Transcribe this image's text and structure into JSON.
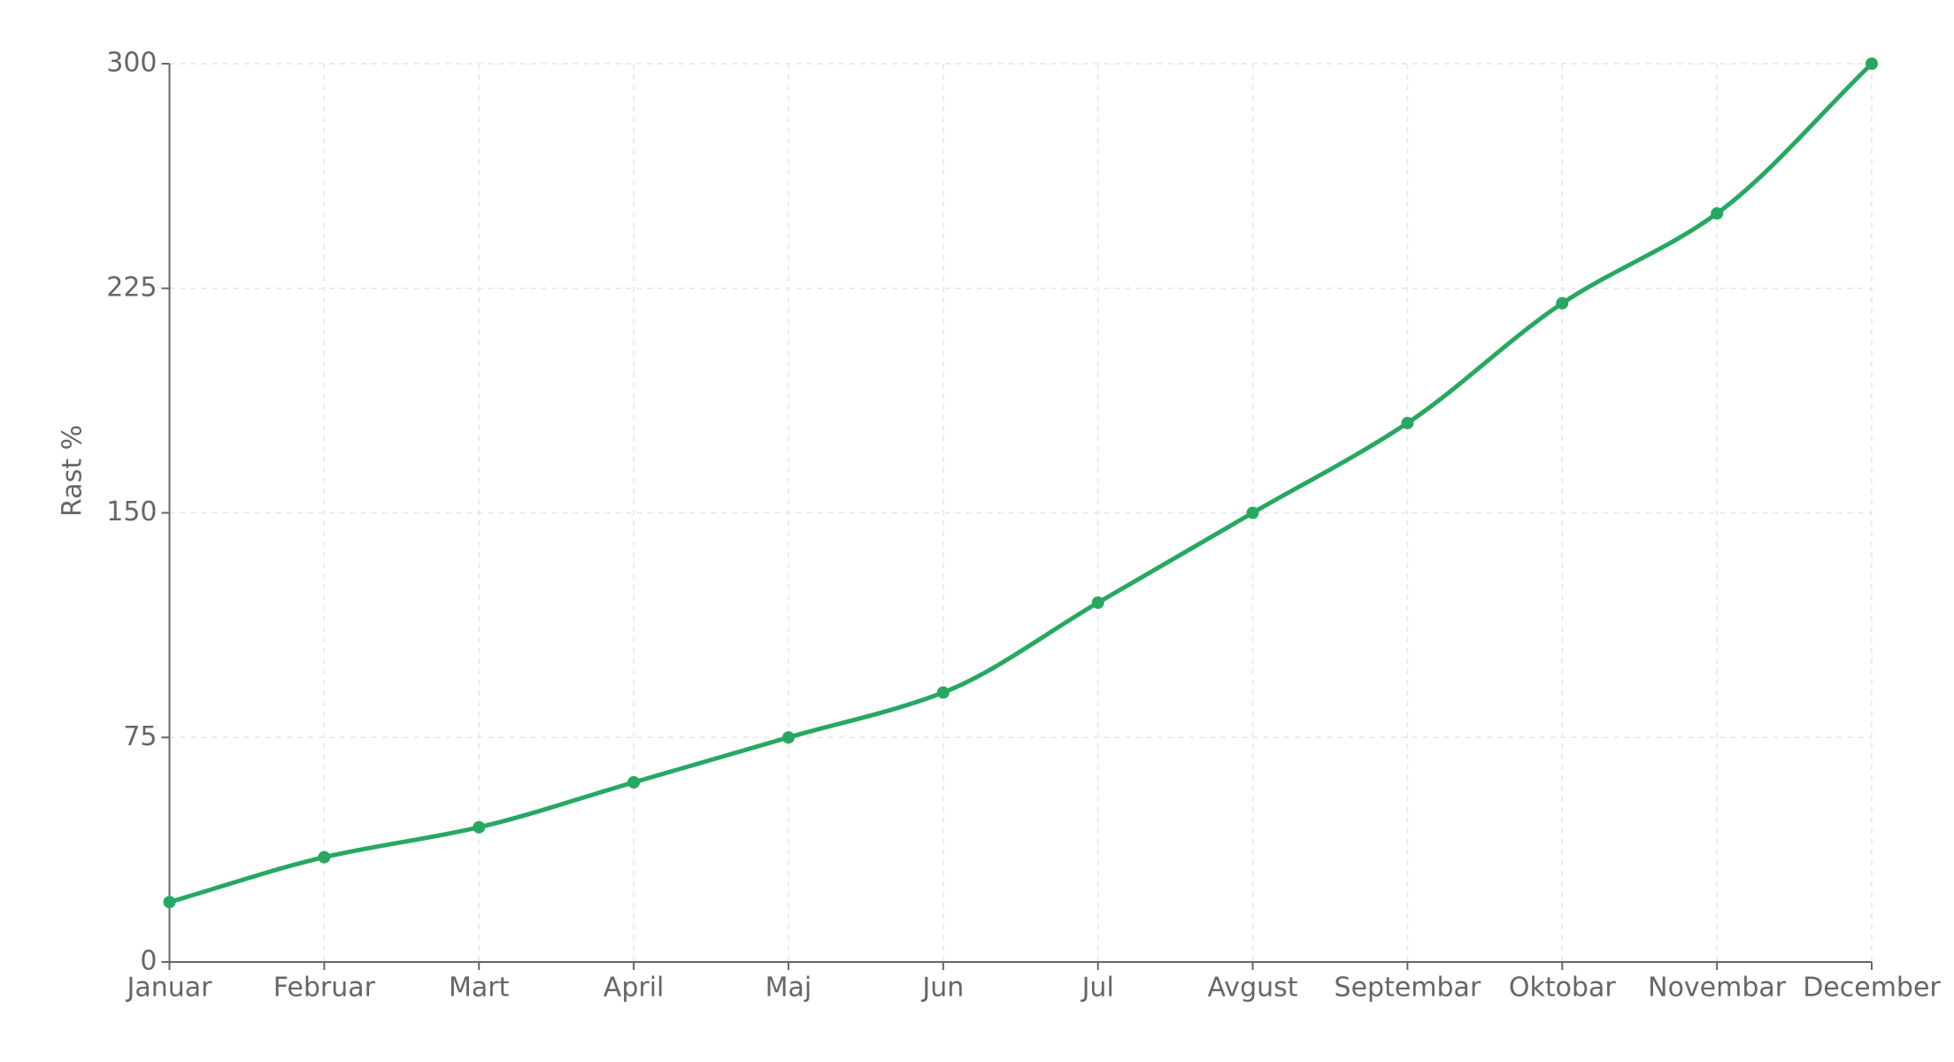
{
  "chart_data": {
    "type": "line",
    "y_label": "Rast %",
    "categories": [
      "Januar",
      "Februar",
      "Mart",
      "April",
      "Maj",
      "Jun",
      "Jul",
      "Avgust",
      "Septembar",
      "Oktobar",
      "Novembar",
      "December"
    ],
    "values": [
      20,
      35,
      45,
      60,
      75,
      90,
      120,
      150,
      180,
      220,
      250,
      300
    ],
    "color": "#27a862",
    "ylim": [
      0,
      300
    ],
    "yticks": [
      0,
      75,
      150,
      225,
      300
    ],
    "grid": true
  }
}
